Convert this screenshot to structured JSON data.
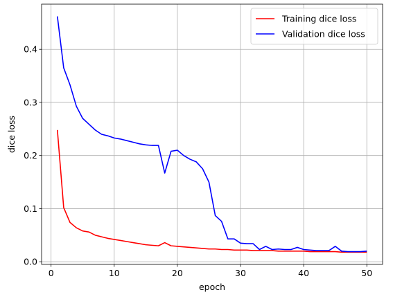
{
  "chart_data": {
    "type": "line",
    "xlabel": "epoch",
    "ylabel": "dice loss",
    "xlim": [
      -1.5,
      52.5
    ],
    "ylim": [
      -0.005,
      0.485
    ],
    "xticks": [
      0,
      10,
      20,
      30,
      40,
      50
    ],
    "yticks": [
      0.0,
      0.1,
      0.2,
      0.3,
      0.4
    ],
    "xtick_labels": [
      "0",
      "10",
      "20",
      "30",
      "40",
      "50"
    ],
    "ytick_labels": [
      "0.0",
      "0.1",
      "0.2",
      "0.3",
      "0.4"
    ],
    "grid": true,
    "legend_position": "top-right",
    "x": [
      1,
      2,
      3,
      4,
      5,
      6,
      7,
      8,
      9,
      10,
      11,
      12,
      13,
      14,
      15,
      16,
      17,
      18,
      19,
      20,
      21,
      22,
      23,
      24,
      25,
      26,
      27,
      28,
      29,
      30,
      31,
      32,
      33,
      34,
      35,
      36,
      37,
      38,
      39,
      40,
      41,
      42,
      43,
      44,
      45,
      46,
      47,
      48,
      49,
      50
    ],
    "series": [
      {
        "name": "Training dice loss",
        "color": "#ff0000",
        "values": [
          0.248,
          0.102,
          0.074,
          0.064,
          0.058,
          0.056,
          0.05,
          0.047,
          0.044,
          0.042,
          0.04,
          0.038,
          0.036,
          0.034,
          0.032,
          0.031,
          0.03,
          0.036,
          0.03,
          0.029,
          0.028,
          0.027,
          0.026,
          0.025,
          0.024,
          0.024,
          0.023,
          0.023,
          0.022,
          0.022,
          0.022,
          0.021,
          0.021,
          0.021,
          0.021,
          0.02,
          0.02,
          0.02,
          0.02,
          0.02,
          0.019,
          0.019,
          0.019,
          0.019,
          0.019,
          0.018,
          0.018,
          0.018,
          0.018,
          0.018
        ]
      },
      {
        "name": "Validation dice loss",
        "color": "#0000ff",
        "values": [
          0.462,
          0.365,
          0.333,
          0.293,
          0.27,
          0.259,
          0.248,
          0.24,
          0.237,
          0.233,
          0.231,
          0.228,
          0.225,
          0.222,
          0.22,
          0.219,
          0.219,
          0.167,
          0.208,
          0.21,
          0.2,
          0.193,
          0.188,
          0.175,
          0.15,
          0.087,
          0.076,
          0.043,
          0.043,
          0.035,
          0.034,
          0.034,
          0.023,
          0.029,
          0.023,
          0.024,
          0.023,
          0.023,
          0.027,
          0.023,
          0.022,
          0.021,
          0.021,
          0.021,
          0.029,
          0.02,
          0.019,
          0.019,
          0.019,
          0.02
        ]
      }
    ]
  }
}
